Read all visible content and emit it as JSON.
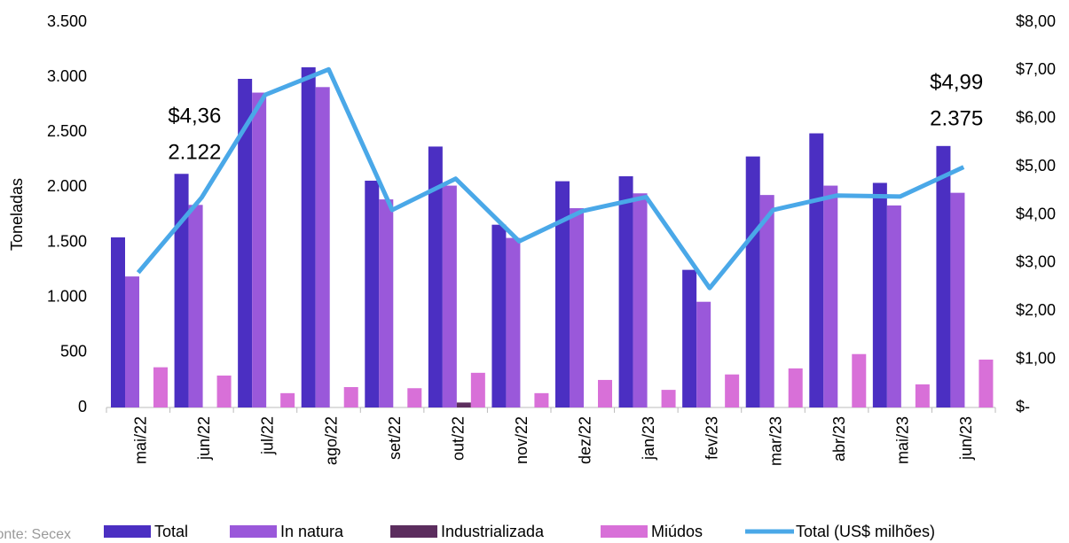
{
  "chart_data": {
    "type": "bar",
    "y_label": "Toneladas",
    "source": "Fonte: Secex",
    "categories": [
      "mai/22",
      "jun/22",
      "jul/22",
      "ago/22",
      "set/22",
      "out/22",
      "nov/22",
      "dez/22",
      "jan/23",
      "fev/23",
      "mar/23",
      "abr/23",
      "mai/23",
      "jun/23"
    ],
    "series": [
      {
        "name": "Total",
        "type": "bar",
        "color": "#4b2fc2",
        "values": [
          1545,
          2122,
          2985,
          3090,
          2060,
          2370,
          1660,
          2055,
          2100,
          1250,
          2280,
          2490,
          2040,
          2375
        ],
        "value_labels": [
          null,
          "2.122",
          null,
          null,
          null,
          null,
          null,
          null,
          null,
          null,
          null,
          null,
          null,
          "2.375"
        ]
      },
      {
        "name": "In natura",
        "type": "bar",
        "color": "#9a58da",
        "values": [
          1190,
          1840,
          2860,
          2910,
          1890,
          2015,
          1540,
          1810,
          1945,
          960,
          1930,
          2015,
          1835,
          1950
        ]
      },
      {
        "name": "Industrializada",
        "type": "bar",
        "color": "#5c2d5e",
        "values": [
          0,
          0,
          0,
          0,
          0,
          45,
          0,
          0,
          0,
          0,
          0,
          0,
          0,
          0
        ]
      },
      {
        "name": "Miúdos",
        "type": "bar",
        "color": "#d870d8",
        "values": [
          365,
          290,
          130,
          185,
          175,
          315,
          130,
          250,
          160,
          300,
          355,
          485,
          210,
          435
        ]
      },
      {
        "name": "Total (US$ milhões)",
        "type": "line",
        "axis": "y2",
        "color": "#4aa8e8",
        "values": [
          2.8,
          4.36,
          6.49,
          7.02,
          4.1,
          4.75,
          3.45,
          4.08,
          4.37,
          2.48,
          4.1,
          4.4,
          4.38,
          4.99
        ],
        "value_labels": [
          null,
          "$4,36",
          null,
          null,
          null,
          null,
          null,
          null,
          null,
          null,
          null,
          null,
          null,
          "$4,99"
        ]
      }
    ],
    "ylim": [
      0,
      3500
    ],
    "yticks": [
      0,
      500,
      {
        "value": 1000,
        "label": "1.000"
      },
      {
        "value": 1500,
        "label": "1.500"
      },
      {
        "value": 2000,
        "label": "2.000"
      },
      {
        "value": 2500,
        "label": "2.500"
      },
      {
        "value": 3000,
        "label": "3.000"
      },
      {
        "value": 3500,
        "label": "3.500"
      }
    ],
    "y2lim": [
      0,
      8
    ],
    "y2ticks": [
      {
        "value": 0,
        "label": "$-"
      },
      {
        "value": 1,
        "label": "$1,00"
      },
      {
        "value": 2,
        "label": "$2,00"
      },
      {
        "value": 3,
        "label": "$3,00"
      },
      {
        "value": 4,
        "label": "$4,00"
      },
      {
        "value": 5,
        "label": "$5,00"
      },
      {
        "value": 6,
        "label": "$6,00"
      },
      {
        "value": 7,
        "label": "$7,00"
      },
      {
        "value": 8,
        "label": "$8,00"
      }
    ],
    "legend": "bottom"
  }
}
